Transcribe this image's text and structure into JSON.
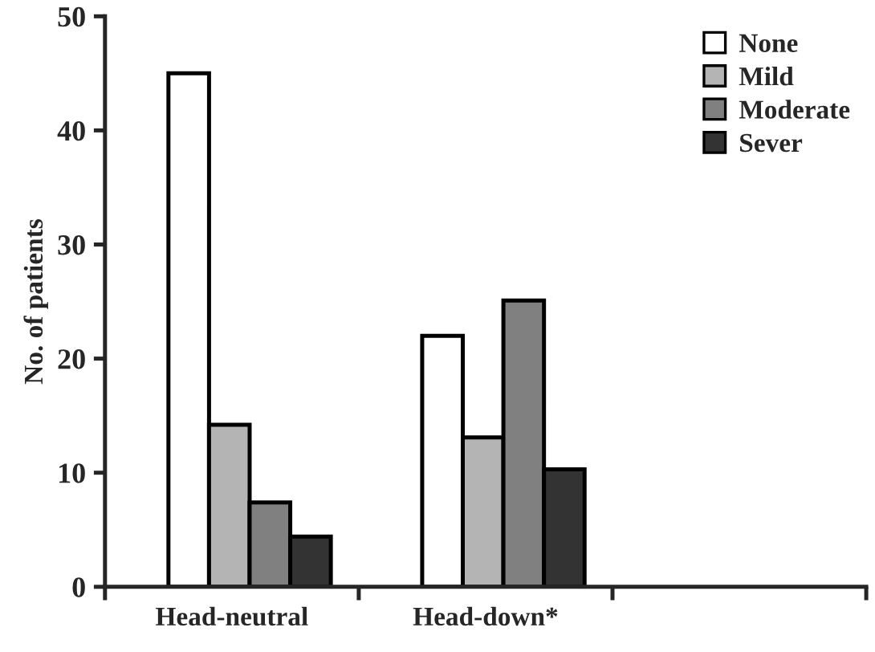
{
  "chart_data": {
    "type": "bar",
    "ylabel": "No. of patients",
    "categories": [
      "Head-neutral",
      "Head-down*",
      null
    ],
    "series": [
      {
        "name": "None",
        "color": "#ffffff",
        "values": [
          45,
          22,
          null
        ]
      },
      {
        "name": "Mild",
        "color": "#b4b4b4",
        "values": [
          14.2,
          13.1,
          null
        ]
      },
      {
        "name": "Moderate",
        "color": "#808080",
        "values": [
          7.4,
          25.1,
          null
        ]
      },
      {
        "name": "Sever",
        "color": "#333333",
        "values": [
          4.4,
          10.3,
          null
        ]
      }
    ],
    "ylim": [
      0,
      50
    ],
    "yticks": [
      0,
      10,
      20,
      30,
      40,
      50
    ],
    "grid": false,
    "legend": "top right"
  }
}
